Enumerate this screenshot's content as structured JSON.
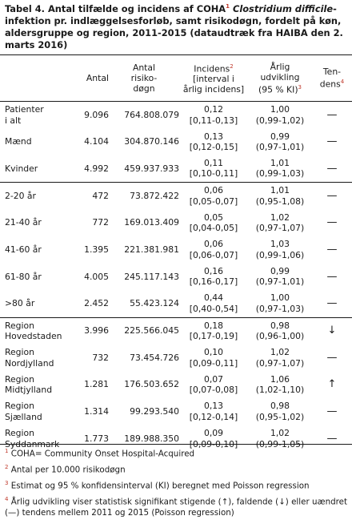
{
  "caption": {
    "part1": "Tabel 4. Antal tilfælde og incidens af COHA",
    "sup": "1",
    "italic": "Clostridium difficile",
    "part2": "-infektion pr. indlæggelsesforløb, samt risikodøgn, fordelt på køn, aldersgruppe og region, 2011-2015 (dataudtræk fra HAIBA den 2. marts 2016)"
  },
  "headers": {
    "antal": "Antal",
    "risiko": "Antal risiko-døgn",
    "risiko_l1": "Antal",
    "risiko_l2": "risiko-",
    "risiko_l3": "døgn",
    "incidens_l1": "Incidens",
    "incidens_sup": "2",
    "incidens_l2": "[interval i",
    "incidens_l3": "årlig incidens]",
    "udvikling_l1": "Årlig",
    "udvikling_l2": "udvikling",
    "udvikling_l3": "(95 % KI)",
    "udvikling_sup": "3",
    "tendens_l1": "Ten-",
    "tendens_l2": "dens",
    "tendens_sup": "4"
  },
  "rows": [
    {
      "label1": "Patienter",
      "label2": "i alt",
      "antal": "9.096",
      "risiko": "764.808.079",
      "inc": "0,12",
      "inc_int": "[0,11-0,13]",
      "udv": "1,00",
      "udv_ki": "(0,99-1,02)",
      "tendens": "—"
    },
    {
      "label1": "Mænd",
      "label2": "",
      "antal": "4.104",
      "risiko": "304.870.146",
      "inc": "0,13",
      "inc_int": "[0,12-0,15]",
      "udv": "0,99",
      "udv_ki": "(0,97-1,01)",
      "tendens": "—"
    },
    {
      "label1": "Kvinder",
      "label2": "",
      "antal": "4.992",
      "risiko": "459.937.933",
      "inc": "0,11",
      "inc_int": "[0,10-0,11]",
      "udv": "1,01",
      "udv_ki": "(0,99-1,03)",
      "tendens": "—"
    },
    {
      "label1": "2-20 år",
      "label2": "",
      "antal": "472",
      "risiko": "73.872.422",
      "inc": "0,06",
      "inc_int": "[0,05-0,07]",
      "udv": "1,01",
      "udv_ki": "(0,95-1,08)",
      "tendens": "—"
    },
    {
      "label1": "21-40 år",
      "label2": "",
      "antal": "772",
      "risiko": "169.013.409",
      "inc": "0,05",
      "inc_int": "[0,04-0,05]",
      "udv": "1,02",
      "udv_ki": "(0,97-1,07)",
      "tendens": "—"
    },
    {
      "label1": "41-60 år",
      "label2": "",
      "antal": "1.395",
      "risiko": "221.381.981",
      "inc": "0,06",
      "inc_int": "[0,06-0,07]",
      "udv": "1,03",
      "udv_ki": "(0,99-1,06)",
      "tendens": "—"
    },
    {
      "label1": "61-80 år",
      "label2": "",
      "antal": "4.005",
      "risiko": "245.117.143",
      "inc": "0,16",
      "inc_int": "[0,16-0,17]",
      "udv": "0,99",
      "udv_ki": "(0,97-1,01)",
      "tendens": "—"
    },
    {
      "label1": ">80 år",
      "label2": "",
      "antal": "2.452",
      "risiko": "55.423.124",
      "inc": "0,44",
      "inc_int": "[0,40-0,54]",
      "udv": "1,00",
      "udv_ki": "(0,97-1,03)",
      "tendens": "—"
    },
    {
      "label1": "Region",
      "label2": "Hovedstaden",
      "antal": "3.996",
      "risiko": "225.566.045",
      "inc": "0,18",
      "inc_int": "[0,17-0,19]",
      "udv": "0,98",
      "udv_ki": "(0,96-1,00)",
      "tendens": "↓"
    },
    {
      "label1": "Region",
      "label2": "Nordjylland",
      "antal": "732",
      "risiko": "73.454.726",
      "inc": "0,10",
      "inc_int": "[0,09-0,11]",
      "udv": "1,02",
      "udv_ki": "(0,97-1,07)",
      "tendens": "—"
    },
    {
      "label1": "Region",
      "label2": "Midtjylland",
      "antal": "1.281",
      "risiko": "176.503.652",
      "inc": "0,07",
      "inc_int": "[0,07-0,08]",
      "udv": "1,06",
      "udv_ki": "(1,02-1,10)",
      "tendens": "↑"
    },
    {
      "label1": "Region",
      "label2": "Sjælland",
      "antal": "1.314",
      "risiko": "99.293.540",
      "inc": "0,13",
      "inc_int": "[0,12-0,14]",
      "udv": "0,98",
      "udv_ki": "(0,95-1,02)",
      "tendens": "—"
    },
    {
      "label1": "Region",
      "label2": "Syddanmark",
      "antal": "1.773",
      "risiko": "189.988.350",
      "inc": "0,09",
      "inc_int": "[0,09-0,10]",
      "udv": "1,02",
      "udv_ki": "(0,99-1,05)",
      "tendens": "—"
    }
  ],
  "footnotes": [
    {
      "num": "1",
      "text": "COHA= Community Onset Hospital-Acquired"
    },
    {
      "num": "2",
      "text": "Antal per 10.000 risikodøgn"
    },
    {
      "num": "3",
      "text": "Estimat og 95 % konfidensinterval (KI) beregnet med Poisson regression"
    },
    {
      "num": "4",
      "text": "Årlig udvikling viser statistisk signifikant stigende (↑), faldende (↓) eller uændret (—) tendens mellem 2011 og 2015 (Poisson regression)"
    }
  ],
  "colors": {
    "superscript": "#c0392b",
    "text": "#1a1a1a"
  }
}
